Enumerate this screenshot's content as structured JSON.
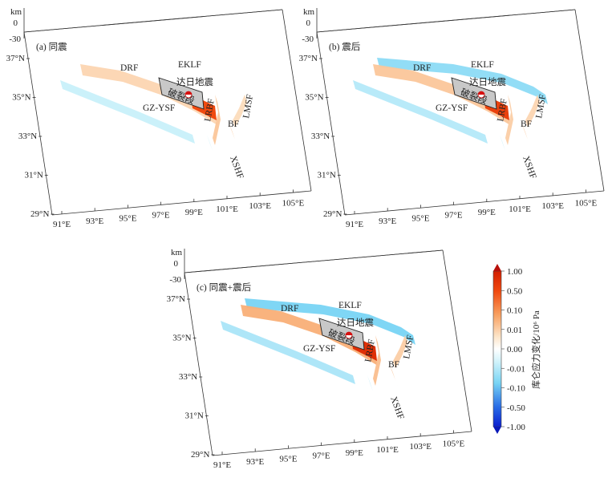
{
  "panels": [
    {
      "id": "a",
      "label": "(a) 同震",
      "depth_unit": "km",
      "depth_ticks": [
        "0",
        "-30"
      ],
      "lat_ticks": [
        "37°N",
        "35°N",
        "33°N",
        "31°N",
        "29°N"
      ],
      "lon_ticks": [
        "91°E",
        "93°E",
        "95°E",
        "97°E",
        "99°E",
        "101°E",
        "103°E",
        "105°E"
      ],
      "fault_labels": [
        "DRF",
        "EKLF",
        "LRBF",
        "LMSF",
        "BF",
        "GZ-YSF",
        "XSHF"
      ],
      "quake_label": "达日地震",
      "rupture_label": "破裂段",
      "coulomb_stress": {
        "DRF": 0.03,
        "EKLF": 0.0,
        "LRBF": 0.05,
        "LMSF": 0.02,
        "BF": 0.04,
        "GZ-YSF": -0.02,
        "XSHF": -0.02,
        "rupture_tip": 0.5
      }
    },
    {
      "id": "b",
      "label": "(b) 震后",
      "depth_unit": "km",
      "depth_ticks": [
        "0",
        "-30"
      ],
      "lat_ticks": [
        "37°N",
        "35°N",
        "33°N",
        "31°N",
        "29°N"
      ],
      "lon_ticks": [
        "91°E",
        "93°E",
        "95°E",
        "97°E",
        "99°E",
        "101°E",
        "103°E",
        "105°E"
      ],
      "fault_labels": [
        "DRF",
        "EKLF",
        "LRBF",
        "LMSF",
        "BF",
        "GZ-YSF",
        "XSHF"
      ],
      "quake_label": "达日地震",
      "rupture_label": "破裂段",
      "coulomb_stress": {
        "DRF": 0.05,
        "EKLF": -0.08,
        "LRBF": 0.04,
        "LMSF": 0.03,
        "BF": 0.05,
        "GZ-YSF": -0.04,
        "XSHF": -0.03,
        "rupture_tip": 0.6
      }
    },
    {
      "id": "c",
      "label": "(c) 同震+震后",
      "depth_unit": "km",
      "depth_ticks": [
        "0",
        "-30"
      ],
      "lat_ticks": [
        "37°N",
        "35°N",
        "33°N",
        "31°N",
        "29°N"
      ],
      "lon_ticks": [
        "91°E",
        "93°E",
        "95°E",
        "97°E",
        "99°E",
        "101°E",
        "103°E",
        "105°E"
      ],
      "fault_labels": [
        "DRF",
        "EKLF",
        "LRBF",
        "LMSF",
        "BF",
        "GZ-YSF",
        "XSHF"
      ],
      "quake_label": "达日地震",
      "rupture_label": "破裂段",
      "coulomb_stress": {
        "DRF": 0.08,
        "EKLF": -0.1,
        "LRBF": 0.06,
        "LMSF": 0.04,
        "BF": 0.06,
        "GZ-YSF": -0.05,
        "XSHF": -0.04,
        "rupture_tip": 0.8
      }
    }
  ],
  "colorbar": {
    "title": "库仑应力变化/10⁶ Pa",
    "ticks": [
      "1.00",
      "0.50",
      "0.10",
      "0.01",
      "0.00",
      "-0.01",
      "-0.10",
      "-0.50",
      "-1.00"
    ],
    "tick_values": [
      1.0,
      0.5,
      0.1,
      0.01,
      0.0,
      -0.01,
      -0.1,
      -0.5,
      -1.0
    ],
    "colors": {
      "max": "#cc1100",
      "mid": "#ffffff",
      "min": "#0a1fd0"
    }
  }
}
